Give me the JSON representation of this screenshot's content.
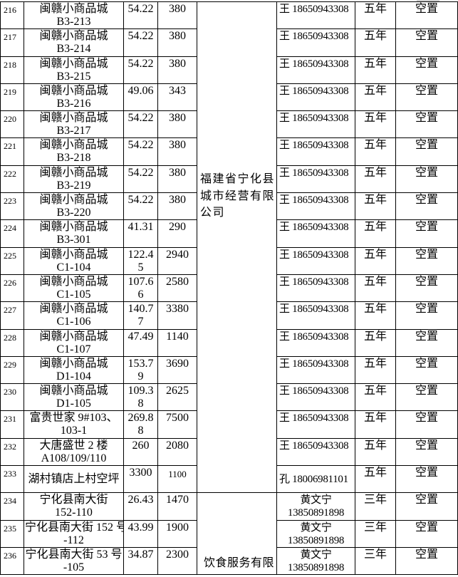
{
  "page": {
    "background_color": "#ffffff",
    "grid_color": "#000000",
    "text_color": "#000000"
  },
  "table": {
    "companies": [
      {
        "name": "福建省宁化县\n城市经营有限\n公司",
        "row_start": 216,
        "row_end": 233
      },
      {
        "name": "饮食服务有限",
        "row_start": 234,
        "row_end": 236
      }
    ],
    "rows": [
      {
        "no": "216",
        "name": "闽赣小商品城\nB3-213",
        "area": "54.22",
        "rent": "380",
        "contact": "王 18650943308",
        "term": "五年",
        "status": "空置"
      },
      {
        "no": "217",
        "name": "闽赣小商品城\nB3-214",
        "area": "54.22",
        "rent": "380",
        "contact": "王 18650943308",
        "term": "五年",
        "status": "空置"
      },
      {
        "no": "218",
        "name": "闽赣小商品城\nB3-215",
        "area": "54.22",
        "rent": "380",
        "contact": "王 18650943308",
        "term": "五年",
        "status": "空置"
      },
      {
        "no": "219",
        "name": "闽赣小商品城\nB3-216",
        "area": "49.06",
        "rent": "343",
        "contact": "王 18650943308",
        "term": "五年",
        "status": "空置"
      },
      {
        "no": "220",
        "name": "闽赣小商品城\nB3-217",
        "area": "54.22",
        "rent": "380",
        "contact": "王 18650943308",
        "term": "五年",
        "status": "空置"
      },
      {
        "no": "221",
        "name": "闽赣小商品城\nB3-218",
        "area": "54.22",
        "rent": "380",
        "contact": "王 18650943308",
        "term": "五年",
        "status": "空置"
      },
      {
        "no": "222",
        "name": "闽赣小商品城\nB3-219",
        "area": "54.22",
        "rent": "380",
        "contact": "王 18650943308",
        "term": "五年",
        "status": "空置"
      },
      {
        "no": "223",
        "name": "闽赣小商品城\nB3-220",
        "area": "54.22",
        "rent": "380",
        "contact": "王 18650943308",
        "term": "五年",
        "status": "空置"
      },
      {
        "no": "224",
        "name": "闽赣小商品城\nB3-301",
        "area": "41.31",
        "rent": "290",
        "contact": "王 18650943308",
        "term": "五年",
        "status": "空置"
      },
      {
        "no": "225",
        "name": "闽赣小商品城\nC1-104",
        "area": "122.4\n5",
        "rent": "2940",
        "contact": "王 18650943308",
        "term": "五年",
        "status": "空置"
      },
      {
        "no": "226",
        "name": "闽赣小商品城\nC1-105",
        "area": "107.6\n6",
        "rent": "2580",
        "contact": "王 18650943308",
        "term": "五年",
        "status": "空置"
      },
      {
        "no": "227",
        "name": "闽赣小商品城\nC1-106",
        "area": "140.7\n7",
        "rent": "3380",
        "contact": "王 18650943308",
        "term": "五年",
        "status": "空置"
      },
      {
        "no": "228",
        "name": "闽赣小商品城\nC1-107",
        "area": "47.49",
        "rent": "1140",
        "contact": "王 18650943308",
        "term": "五年",
        "status": "空置"
      },
      {
        "no": "229",
        "name": "闽赣小商品城\nD1-104",
        "area": "153.7\n9",
        "rent": "3690",
        "contact": "王 18650943308",
        "term": "五年",
        "status": "空置"
      },
      {
        "no": "230",
        "name": "闽赣小商品城\nD1-105",
        "area": "109.3\n8",
        "rent": "2625",
        "contact": "王 18650943308",
        "term": "五年",
        "status": "空置"
      },
      {
        "no": "231",
        "name": "富贵世家 9#103、\n103-1",
        "area": "269.8\n8",
        "rent": "7500",
        "contact": "王 18650943308",
        "term": "五年",
        "status": "空置"
      },
      {
        "no": "232",
        "name": "大唐盛世 2 楼\nA108/109/110",
        "area": "260",
        "rent": "2080",
        "contact": "王 18650943308",
        "term": "五年",
        "status": "空置"
      },
      {
        "no": "233",
        "name": "湖村镇店上村空坪",
        "area": "3300",
        "rent": "1100",
        "contact": "孔 18006981101",
        "term": "五年",
        "status": "空置"
      },
      {
        "no": "234",
        "name": "宁化县南大街\n152-110",
        "area": "26.43",
        "rent": "1470",
        "contact": "黄文宁\n13850891898",
        "term": "三年",
        "status": "空置"
      },
      {
        "no": "235",
        "name": "宁化县南大街 152 号\n-112",
        "area": "43.99",
        "rent": "1900",
        "contact": "黄文宁\n13850891898",
        "term": "三年",
        "status": "空置"
      },
      {
        "no": "236",
        "name": "宁化县南大街 53 号\n-105",
        "area": "34.87",
        "rent": "2300",
        "contact": "黄文宁\n13850891898",
        "term": "三年",
        "status": "空置"
      }
    ]
  }
}
